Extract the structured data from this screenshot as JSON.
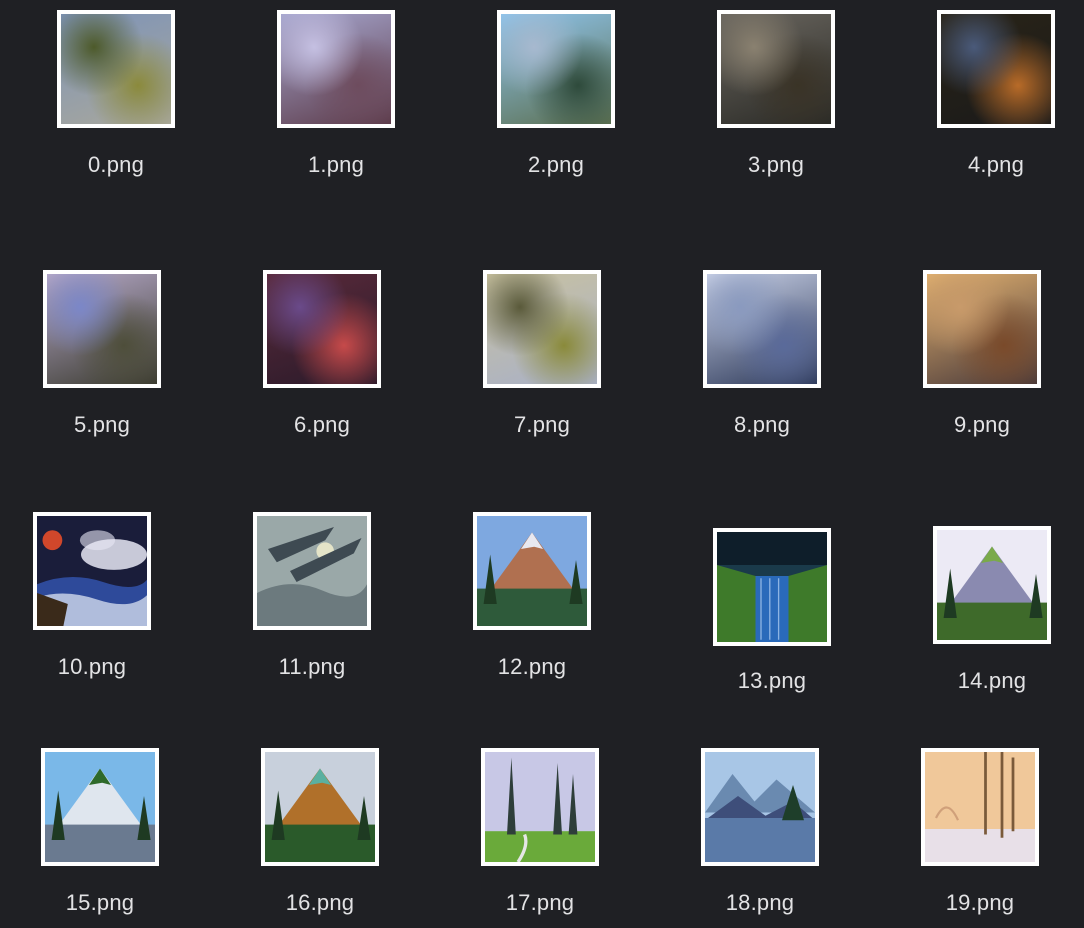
{
  "files": [
    {
      "name": "0.png",
      "thumb_colors": [
        "#7d93b8",
        "#8b8a3c",
        "#4d5a2a",
        "#a9a89c"
      ],
      "style": "abstract"
    },
    {
      "name": "1.png",
      "thumb_colors": [
        "#a7a7cf",
        "#6e4c5e",
        "#c5c0e2",
        "#5c3b4a"
      ],
      "style": "abstract"
    },
    {
      "name": "2.png",
      "thumb_colors": [
        "#8fc4ec",
        "#2e4a3b",
        "#a7b9cf",
        "#5b6f50"
      ],
      "style": "abstract"
    },
    {
      "name": "3.png",
      "thumb_colors": [
        "#6a665f",
        "#3a3326",
        "#8a8170",
        "#2a2a26"
      ],
      "style": "abstract"
    },
    {
      "name": "4.png",
      "thumb_colors": [
        "#2a2417",
        "#b86b28",
        "#4a5a7a",
        "#1a1a1a"
      ],
      "style": "abstract"
    },
    {
      "name": "5.png",
      "thumb_colors": [
        "#b6a9c9",
        "#4e4e3a",
        "#7b87c8",
        "#3b3b30"
      ],
      "style": "abstract"
    },
    {
      "name": "6.png",
      "thumb_colors": [
        "#5a2a3a",
        "#c64a4a",
        "#6a4a8a",
        "#2a1a2a"
      ],
      "style": "abstract"
    },
    {
      "name": "7.png",
      "thumb_colors": [
        "#c9c2a0",
        "#8a8a3a",
        "#5a5a3a",
        "#a8b0c8"
      ],
      "style": "abstract"
    },
    {
      "name": "8.png",
      "thumb_colors": [
        "#c8d0e6",
        "#5a6a9a",
        "#8a9abf",
        "#2e3a5a"
      ],
      "style": "abstract"
    },
    {
      "name": "9.png",
      "thumb_colors": [
        "#e0b070",
        "#7a4a2a",
        "#c89a6a",
        "#4a3a3a"
      ],
      "style": "abstract"
    },
    {
      "name": "10.png",
      "thumb_colors": [
        "#1a1d3a",
        "#d0472b",
        "#e8e8f5",
        "#2e4a9a"
      ],
      "style": "seascape"
    },
    {
      "name": "11.png",
      "thumb_colors": [
        "#9aa8a8",
        "#3e4a52",
        "#e4e4c8",
        "#6c7a7e"
      ],
      "style": "storm"
    },
    {
      "name": "12.png",
      "thumb_colors": [
        "#7ea8e0",
        "#b07050",
        "#2e5a3a",
        "#e8e8f0"
      ],
      "style": "mountain"
    },
    {
      "name": "13.png",
      "thumb_colors": [
        "#1a3a4a",
        "#3e7a2a",
        "#2a6aba",
        "#0e1e2a"
      ],
      "style": "waterfall"
    },
    {
      "name": "14.png",
      "thumb_colors": [
        "#eceaf5",
        "#8a8ab0",
        "#3e6a2a",
        "#7aaa4a"
      ],
      "style": "mountain"
    },
    {
      "name": "15.png",
      "thumb_colors": [
        "#7ab8e8",
        "#dfe6ee",
        "#6a7a90",
        "#2e6a2a"
      ],
      "style": "mountain"
    },
    {
      "name": "16.png",
      "thumb_colors": [
        "#c8d0dc",
        "#b0702a",
        "#2a5a2a",
        "#5ab0a0"
      ],
      "style": "mountain"
    },
    {
      "name": "17.png",
      "thumb_colors": [
        "#c8c8e6",
        "#2e3e3a",
        "#6aaa3a",
        "#e6e6e6"
      ],
      "style": "forest"
    },
    {
      "name": "18.png",
      "thumb_colors": [
        "#a8c6e6",
        "#3e4e7a",
        "#1e3e2a",
        "#6a8ab0"
      ],
      "style": "lake"
    },
    {
      "name": "19.png",
      "thumb_colors": [
        "#f0c89a",
        "#e8e0e8",
        "#7a5a3a",
        "#d0a07a"
      ],
      "style": "winter"
    }
  ]
}
